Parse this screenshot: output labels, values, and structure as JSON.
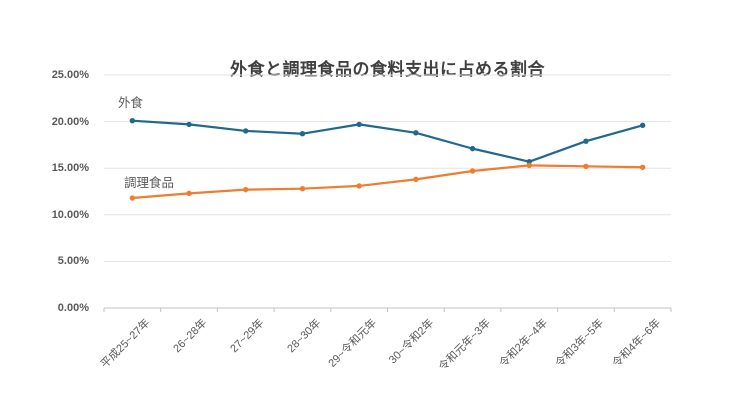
{
  "chart_data": {
    "type": "line",
    "title": "外食と調理食品の食料支出に占める割合",
    "categories": [
      "平成25~27年",
      "26~28年",
      "27~29年",
      "28~30年",
      "29~令和元年",
      "30~令和2年",
      "令和元年~3年",
      "令和2年~4年",
      "令和3年~5年",
      "令和4年~6年"
    ],
    "series": [
      {
        "name": "外食",
        "color": "#21698C",
        "values": [
          20.1,
          19.7,
          19.0,
          18.7,
          19.7,
          18.8,
          17.1,
          15.7,
          17.9,
          19.6
        ]
      },
      {
        "name": "調理食品",
        "color": "#ED7D31",
        "values": [
          11.8,
          12.3,
          12.7,
          12.8,
          13.1,
          13.8,
          14.7,
          15.3,
          15.2,
          15.1
        ]
      }
    ],
    "xlabel": "",
    "ylabel": "",
    "ylim": [
      0,
      25
    ],
    "y_tick_step": 5,
    "y_ticks": [
      "0.00%",
      "5.00%",
      "10.00%",
      "15.00%",
      "20.00%",
      "25.00%"
    ],
    "grid": true,
    "legend_position": "inline-labels-next-to-lines",
    "marker": "circle"
  },
  "colors": {
    "grid": "#e3e3e3",
    "axis": "#c3c3c3",
    "axis_text": "#595959",
    "title_text": "#404040",
    "background": "#ffffff"
  }
}
